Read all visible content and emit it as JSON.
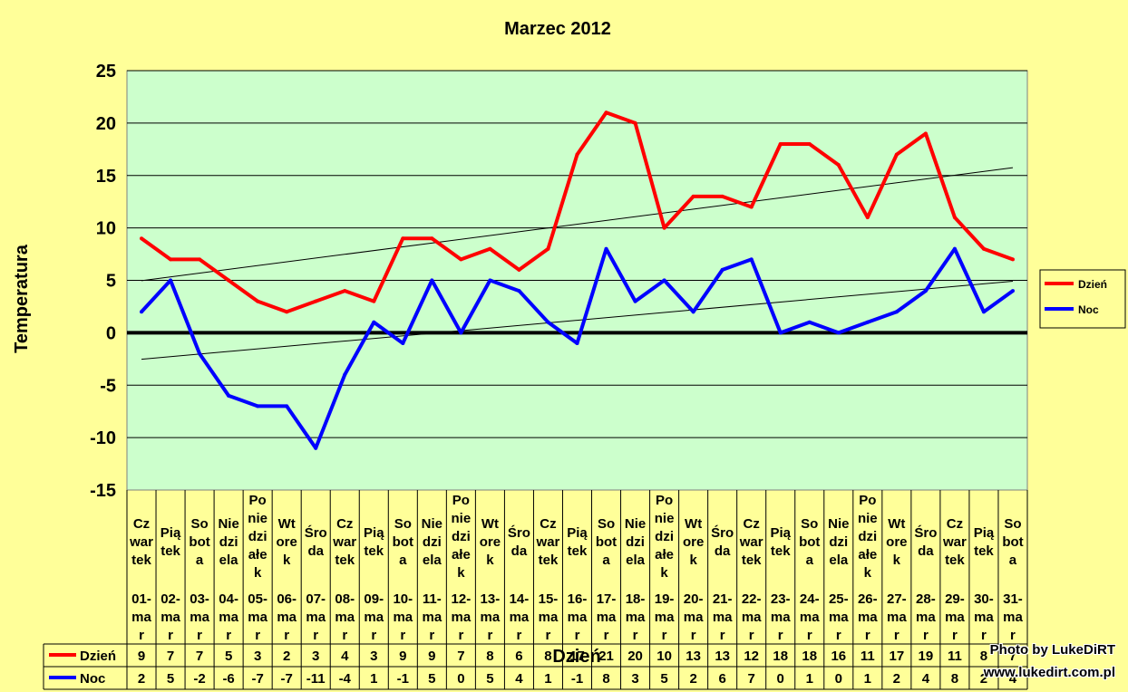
{
  "chart_data": {
    "type": "line",
    "title": "Marzec 2012",
    "ylabel": "Temperatura",
    "xlabel": "Dzień",
    "ylim": [
      -15,
      25
    ],
    "yticks": [
      "25",
      "20",
      "15",
      "10",
      "5",
      "0",
      "-5",
      "-10",
      "-15"
    ],
    "grid": true,
    "legend_position": "right",
    "days": [
      [
        "Cz",
        "war",
        "tek"
      ],
      [
        "Pią",
        "tek"
      ],
      [
        "So",
        "bot",
        "a"
      ],
      [
        "Nie",
        "dzi",
        "ela"
      ],
      [
        "Po",
        "nie",
        "dzi",
        "ałe",
        "k"
      ],
      [
        "Wt",
        "ore",
        "k"
      ],
      [
        "Śro",
        "da"
      ],
      [
        "Cz",
        "war",
        "tek"
      ],
      [
        "Pią",
        "tek"
      ],
      [
        "So",
        "bot",
        "a"
      ],
      [
        "Nie",
        "dzi",
        "ela"
      ],
      [
        "Po",
        "nie",
        "dzi",
        "ałe",
        "k"
      ],
      [
        "Wt",
        "ore",
        "k"
      ],
      [
        "Śro",
        "da"
      ],
      [
        "Cz",
        "war",
        "tek"
      ],
      [
        "Pią",
        "tek"
      ],
      [
        "So",
        "bot",
        "a"
      ],
      [
        "Nie",
        "dzi",
        "ela"
      ],
      [
        "Po",
        "nie",
        "dzi",
        "ałe",
        "k"
      ],
      [
        "Wt",
        "ore",
        "k"
      ],
      [
        "Śro",
        "da"
      ],
      [
        "Cz",
        "war",
        "tek"
      ],
      [
        "Pią",
        "tek"
      ],
      [
        "So",
        "bot",
        "a"
      ],
      [
        "Nie",
        "dzi",
        "ela"
      ],
      [
        "Po",
        "nie",
        "dzi",
        "ałe",
        "k"
      ],
      [
        "Wt",
        "ore",
        "k"
      ],
      [
        "Śro",
        "da"
      ],
      [
        "Cz",
        "war",
        "tek"
      ],
      [
        "Pią",
        "tek"
      ],
      [
        "So",
        "bot",
        "a"
      ]
    ],
    "dates": [
      [
        "01-",
        "ma",
        "r"
      ],
      [
        "02-",
        "ma",
        "r"
      ],
      [
        "03-",
        "ma",
        "r"
      ],
      [
        "04-",
        "ma",
        "r"
      ],
      [
        "05-",
        "ma",
        "r"
      ],
      [
        "06-",
        "ma",
        "r"
      ],
      [
        "07-",
        "ma",
        "r"
      ],
      [
        "08-",
        "ma",
        "r"
      ],
      [
        "09-",
        "ma",
        "r"
      ],
      [
        "10-",
        "ma",
        "r"
      ],
      [
        "11-",
        "ma",
        "r"
      ],
      [
        "12-",
        "ma",
        "r"
      ],
      [
        "13-",
        "ma",
        "r"
      ],
      [
        "14-",
        "ma",
        "r"
      ],
      [
        "15-",
        "ma",
        "r"
      ],
      [
        "16-",
        "ma",
        "r"
      ],
      [
        "17-",
        "ma",
        "r"
      ],
      [
        "18-",
        "ma",
        "r"
      ],
      [
        "19-",
        "ma",
        "r"
      ],
      [
        "20-",
        "ma",
        "r"
      ],
      [
        "21-",
        "ma",
        "r"
      ],
      [
        "22-",
        "ma",
        "r"
      ],
      [
        "23-",
        "ma",
        "r"
      ],
      [
        "24-",
        "ma",
        "r"
      ],
      [
        "25-",
        "ma",
        "r"
      ],
      [
        "26-",
        "ma",
        "r"
      ],
      [
        "27-",
        "ma",
        "r"
      ],
      [
        "28-",
        "ma",
        "r"
      ],
      [
        "29-",
        "ma",
        "r"
      ],
      [
        "30-",
        "ma",
        "r"
      ],
      [
        "31-",
        "ma",
        "r"
      ]
    ],
    "series": [
      {
        "name": "Dzień",
        "color": "#FF0000",
        "values": [
          9,
          7,
          7,
          5,
          3,
          2,
          3,
          4,
          3,
          9,
          9,
          7,
          8,
          6,
          8,
          17,
          21,
          20,
          10,
          13,
          13,
          12,
          18,
          18,
          16,
          11,
          17,
          19,
          11,
          8,
          7
        ]
      },
      {
        "name": "Noc",
        "color": "#0000FF",
        "values": [
          2,
          5,
          -2,
          -6,
          -7,
          -7,
          -11,
          -4,
          1,
          -1,
          5,
          0,
          5,
          4,
          1,
          -1,
          8,
          3,
          5,
          2,
          6,
          7,
          0,
          1,
          0,
          1,
          2,
          4,
          8,
          2,
          4
        ]
      }
    ],
    "colors": {
      "background": "#FFFF99",
      "plot_area": "#CCFFCC",
      "trendline": "#000000",
      "zero_line": "#000000"
    },
    "trendlines": "linear"
  },
  "credit": {
    "line1": "Photo by LukeDiRT",
    "line2": "www.lukedirt.com.pl"
  }
}
